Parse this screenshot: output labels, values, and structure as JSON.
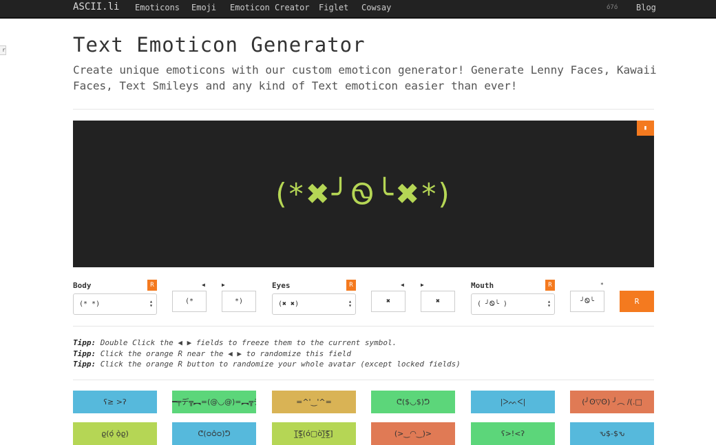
{
  "nav": {
    "brand": "ASCII.li",
    "items": [
      "Emoticons",
      "Emoji",
      "Emoticon Creator",
      "Figlet",
      "Cowsay"
    ],
    "lang": "ό7ό",
    "blog": "Blog"
  },
  "side_tab": "r",
  "page": {
    "title": "Text Emoticon Generator",
    "lead": "Create unique emoticons with our custom emoticon generator! Generate Lenny Faces, Kawaii Faces, Text Smileys and any kind of Text emoticon easier than ever!"
  },
  "preview": {
    "face": "(*✖╯Ꮻ╰✖*)",
    "copy_icon": "clipboard-icon"
  },
  "controls": {
    "body": {
      "label": "Body",
      "r": "R",
      "value": "(* *)",
      "left": "(*",
      "right": "*)"
    },
    "eyes": {
      "label": "Eyes",
      "r": "R",
      "value": "(✖ ✖)",
      "left": "✖",
      "right": "✖"
    },
    "mouth": {
      "label": "Mouth",
      "r": "R",
      "value": "( ╯Ꮻ╰ )",
      "center": "╯Ꮻ╰",
      "star": "*"
    },
    "arrow_left": "◀",
    "arrow_right": "▶",
    "randomize": "R"
  },
  "tips": [
    {
      "label": "Tipp:",
      "text": " Double Click the ◀ ▶ fields to freeze them to the current symbol."
    },
    {
      "label": "Tipp:",
      "text": " Click the orange R near the ◀ ▶ to randomize this field"
    },
    {
      "label": "Tipp:",
      "text": " Click the orange R button to randomize your whole avatar (except locked fields)"
    }
  ],
  "cards": [
    {
      "text": "ʕ≥ >ʔ",
      "color": "#56b9dc"
    },
    {
      "text": "━╤デ╦︻=(@◡@)=︻╦デ╤━",
      "color": "#5cd67a"
    },
    {
      "text": "=^'‿'^=",
      "color": "#d9b355"
    },
    {
      "text": "ᕦ($◡$)ᕤ",
      "color": "#5cd67a"
    },
    {
      "text": "|ᐳᨓᐸ|",
      "color": "#56b9dc"
    },
    {
      "text": "(╯ʘ▽ʘ) ╯︵ /(.□",
      "color": "#e07a55"
    },
    {
      "text": "ϱ(ọ́ ọ̀ϱ)",
      "color": "#b5d655"
    },
    {
      "text": "ᕦ(ᴑᴑ̂ᴑ)ᕤ",
      "color": "#56b9dc"
    },
    {
      "text": "[̲̅$̲̅(ό▢ὸ)̲̅$̲̅]",
      "color": "#b5d655"
    },
    {
      "text": "(>‿◠‿)>",
      "color": "#e07a55"
    },
    {
      "text": "ʕ>!<ʔ",
      "color": "#5cd67a"
    },
    {
      "text": "ԅ$-$ԅ",
      "color": "#56b9dc"
    }
  ]
}
